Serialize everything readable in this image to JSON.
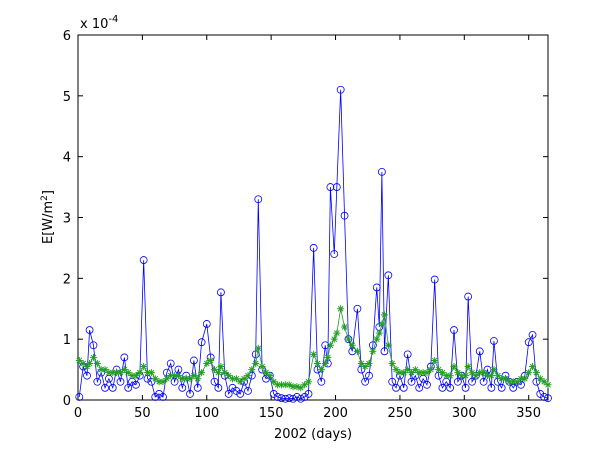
{
  "chart_data": {
    "type": "line",
    "xlabel": "2002 (days)",
    "ylabel": "E[W/m",
    "ylabel_sup": "2",
    "ylabel_end": "]",
    "y_exponent_base": "x 10",
    "y_exponent": "-4",
    "x": [
      1,
      4,
      7,
      9,
      12,
      15,
      18,
      21,
      24,
      27,
      30,
      33,
      36,
      39,
      42,
      45,
      48,
      51,
      54,
      57,
      60,
      63,
      66,
      69,
      72,
      75,
      78,
      81,
      84,
      87,
      90,
      93,
      96,
      100,
      103,
      106,
      109,
      111,
      114,
      117,
      120,
      123,
      126,
      129,
      132,
      135,
      138,
      140,
      143,
      146,
      149,
      152,
      155,
      158,
      161,
      164,
      167,
      170,
      173,
      176,
      179,
      183,
      186,
      189,
      192,
      194,
      196,
      199,
      201,
      204,
      207,
      210,
      213,
      217,
      220,
      223,
      226,
      229,
      232,
      234,
      236,
      238,
      241,
      244,
      247,
      250,
      253,
      256,
      259,
      262,
      265,
      268,
      271,
      274,
      277,
      280,
      283,
      286,
      289,
      292,
      295,
      298,
      301,
      303,
      306,
      309,
      312,
      315,
      318,
      321,
      323,
      326,
      329,
      332,
      335,
      338,
      341,
      344,
      347,
      350,
      353,
      356,
      359,
      362,
      365
    ],
    "series": [
      {
        "color": "#0000ff",
        "marker": "circle",
        "values": [
          0.05,
          0.55,
          0.4,
          1.15,
          0.9,
          0.3,
          0.45,
          0.2,
          0.35,
          0.2,
          0.5,
          0.3,
          0.7,
          0.2,
          0.3,
          0.25,
          0.4,
          2.3,
          0.35,
          0.3,
          0.05,
          0.1,
          0.05,
          0.45,
          0.6,
          0.3,
          0.5,
          0.2,
          0.4,
          0.1,
          0.65,
          0.2,
          0.95,
          1.25,
          0.7,
          0.3,
          0.2,
          1.77,
          0.4,
          0.1,
          0.2,
          0.15,
          0.1,
          0.3,
          0.15,
          0.4,
          0.75,
          3.3,
          0.5,
          0.35,
          0.4,
          0.1,
          0.05,
          0.03,
          0.02,
          0.03,
          0.02,
          0.05,
          0.02,
          0.05,
          0.1,
          2.5,
          0.5,
          0.3,
          0.9,
          0.6,
          3.5,
          2.4,
          3.5,
          5.1,
          3.03,
          1.0,
          0.8,
          1.5,
          0.5,
          0.3,
          0.4,
          0.9,
          1.85,
          1.2,
          3.75,
          0.8,
          2.05,
          0.3,
          0.2,
          0.4,
          0.2,
          0.75,
          0.3,
          0.4,
          0.2,
          0.35,
          0.25,
          0.55,
          1.98,
          0.4,
          0.2,
          0.3,
          0.2,
          1.15,
          0.3,
          0.4,
          0.2,
          1.7,
          0.3,
          0.4,
          0.8,
          0.3,
          0.5,
          0.2,
          0.97,
          0.3,
          0.2,
          0.4,
          0.3,
          0.2,
          0.3,
          0.25,
          0.4,
          0.95,
          1.07,
          0.3,
          0.1,
          0.05,
          0.03
        ]
      },
      {
        "color": "#22a022",
        "marker": "star",
        "values": [
          0.65,
          0.6,
          0.55,
          0.6,
          0.7,
          0.6,
          0.5,
          0.5,
          0.45,
          0.45,
          0.45,
          0.45,
          0.5,
          0.45,
          0.4,
          0.4,
          0.45,
          0.55,
          0.45,
          0.45,
          0.35,
          0.3,
          0.3,
          0.35,
          0.4,
          0.4,
          0.4,
          0.35,
          0.35,
          0.35,
          0.4,
          0.35,
          0.45,
          0.6,
          0.65,
          0.5,
          0.45,
          0.55,
          0.45,
          0.4,
          0.35,
          0.35,
          0.3,
          0.35,
          0.4,
          0.5,
          0.6,
          0.85,
          0.55,
          0.45,
          0.4,
          0.3,
          0.25,
          0.25,
          0.25,
          0.25,
          0.22,
          0.22,
          0.2,
          0.25,
          0.3,
          0.75,
          0.6,
          0.5,
          0.6,
          0.7,
          0.9,
          1.0,
          1.1,
          1.5,
          1.2,
          1.0,
          0.9,
          0.8,
          0.6,
          0.55,
          0.6,
          0.8,
          1.0,
          1.1,
          1.25,
          1.4,
          0.9,
          0.6,
          0.5,
          0.45,
          0.45,
          0.5,
          0.45,
          0.5,
          0.45,
          0.45,
          0.45,
          0.5,
          0.65,
          0.5,
          0.45,
          0.4,
          0.4,
          0.55,
          0.45,
          0.4,
          0.4,
          0.55,
          0.45,
          0.4,
          0.45,
          0.45,
          0.4,
          0.4,
          0.5,
          0.4,
          0.35,
          0.35,
          0.3,
          0.3,
          0.3,
          0.35,
          0.35,
          0.45,
          0.55,
          0.45,
          0.35,
          0.3,
          0.25
        ]
      }
    ],
    "xlim": [
      0,
      365
    ],
    "xticks": [
      0,
      50,
      100,
      150,
      200,
      250,
      300,
      350
    ],
    "ylim": [
      0,
      6
    ],
    "yticks": [
      0,
      1,
      2,
      3,
      4,
      5,
      6
    ]
  }
}
